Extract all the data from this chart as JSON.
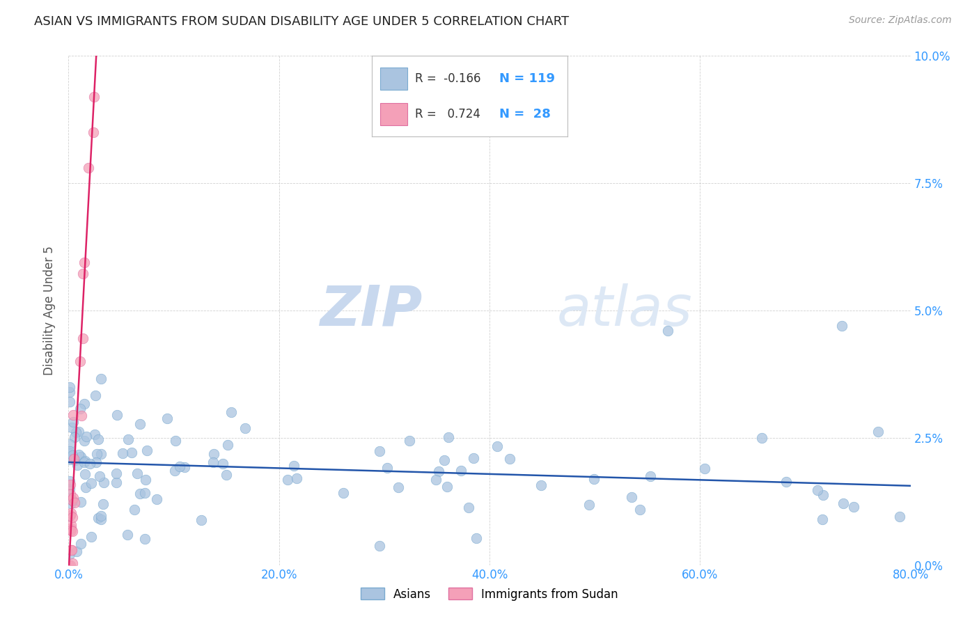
{
  "title": "ASIAN VS IMMIGRANTS FROM SUDAN DISABILITY AGE UNDER 5 CORRELATION CHART",
  "source": "Source: ZipAtlas.com",
  "ylabel": "Disability Age Under 5",
  "xlim": [
    0.0,
    0.8
  ],
  "ylim": [
    0.0,
    0.1
  ],
  "legend_label_asian": "Asians",
  "legend_label_sudan": "Immigrants from Sudan",
  "r_asian": "-0.166",
  "n_asian": "119",
  "r_sudan": "0.724",
  "n_sudan": "28",
  "asian_color": "#aac4e0",
  "asian_edge": "#7aaad0",
  "sudan_color": "#f4a0b8",
  "sudan_edge": "#e070a0",
  "trend_asian_color": "#2255aa",
  "trend_sudan_color": "#dd2266",
  "background_color": "#ffffff",
  "grid_color": "#cccccc",
  "tick_color": "#3399ff",
  "title_color": "#222222",
  "watermark_zip": "ZIP",
  "watermark_atlas": "atlas",
  "watermark_color": "#dde8f5"
}
